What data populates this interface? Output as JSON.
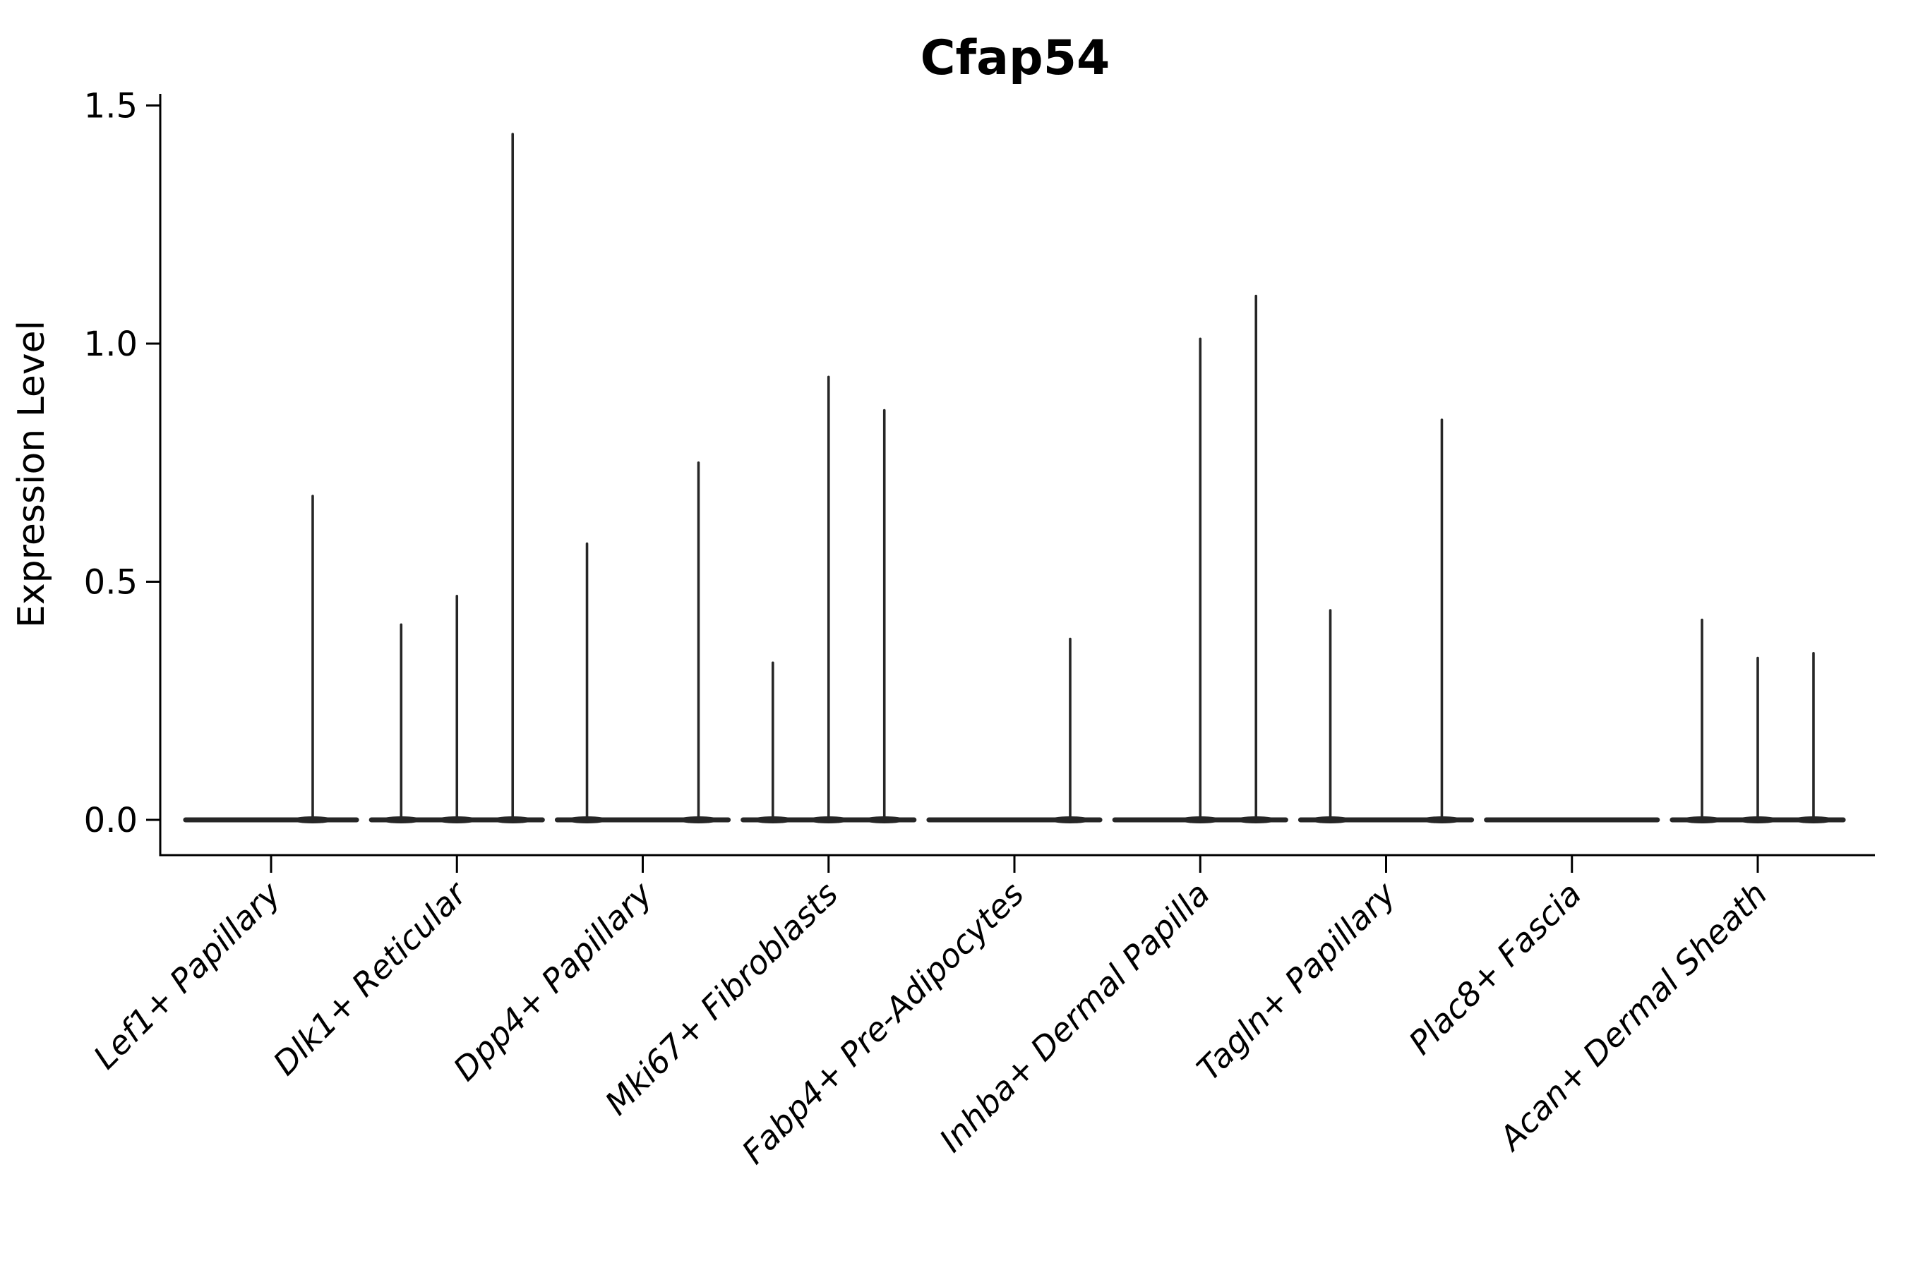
{
  "title": "Cfap54",
  "y_axis": {
    "label": "Expression Level",
    "tick_labels": [
      "0.0",
      "0.5",
      "1.0",
      "1.5"
    ],
    "tick_values": [
      0.0,
      0.5,
      1.0,
      1.5
    ]
  },
  "x_axis": {
    "categories": [
      "Lef1+ Papillary",
      "Dlk1+ Reticular",
      "Dpp4+ Papillary",
      "Mki67+ Fibroblasts",
      "Fabp4+ Pre-Adipocytes",
      "Inhba+ Dermal Papilla",
      "Tagln+ Papillary",
      "Plac8+ Fascia",
      "Acan+ Dermal Sheath"
    ]
  },
  "chart_data": {
    "type": "violin",
    "title": "Cfap54",
    "xlabel": "",
    "ylabel": "Expression Level",
    "ylim": [
      -0.07,
      1.52
    ],
    "grid": false,
    "legend": "none",
    "note": "Spike-style violins: wide flat density at 0 per category plus thin spikes; offset is fraction of category spacing from category center, value is expression level at spike top",
    "violin_half_width_frac": 0.46,
    "categories": [
      "Lef1+ Papillary",
      "Dlk1+ Reticular",
      "Dpp4+ Papillary",
      "Mki67+ Fibroblasts",
      "Fabp4+ Pre-Adipocytes",
      "Inhba+ Dermal Papilla",
      "Tagln+ Papillary",
      "Plac8+ Fascia",
      "Acan+ Dermal Sheath"
    ],
    "series": [
      {
        "name": "Lef1+ Papillary",
        "baseline_value": 0.0,
        "spikes": [
          {
            "offset": 0.224,
            "value": 0.68
          }
        ]
      },
      {
        "name": "Dlk1+ Reticular",
        "baseline_value": 0.0,
        "spikes": [
          {
            "offset": -0.3,
            "value": 0.41
          },
          {
            "offset": 0.0,
            "value": 0.47
          },
          {
            "offset": 0.3,
            "value": 1.44
          }
        ]
      },
      {
        "name": "Dpp4+ Papillary",
        "baseline_value": 0.0,
        "spikes": [
          {
            "offset": -0.3,
            "value": 0.58
          },
          {
            "offset": 0.3,
            "value": 0.75
          }
        ]
      },
      {
        "name": "Mki67+ Fibroblasts",
        "baseline_value": 0.0,
        "spikes": [
          {
            "offset": -0.3,
            "value": 0.33
          },
          {
            "offset": 0.0,
            "value": 0.93
          },
          {
            "offset": 0.3,
            "value": 0.86
          }
        ]
      },
      {
        "name": "Fabp4+ Pre-Adipocytes",
        "baseline_value": 0.0,
        "spikes": [
          {
            "offset": 0.3,
            "value": 0.38
          }
        ]
      },
      {
        "name": "Inhba+ Dermal Papilla",
        "baseline_value": 0.0,
        "spikes": [
          {
            "offset": 0.0,
            "value": 1.01
          },
          {
            "offset": 0.3,
            "value": 1.1
          }
        ]
      },
      {
        "name": "Tagln+ Papillary",
        "baseline_value": 0.0,
        "spikes": [
          {
            "offset": -0.3,
            "value": 0.44
          },
          {
            "offset": 0.3,
            "value": 0.84
          }
        ]
      },
      {
        "name": "Plac8+ Fascia",
        "baseline_value": 0.0,
        "spikes": []
      },
      {
        "name": "Acan+ Dermal Sheath",
        "baseline_value": 0.0,
        "spikes": [
          {
            "offset": -0.3,
            "value": 0.42
          },
          {
            "offset": 0.0,
            "value": 0.34
          },
          {
            "offset": 0.3,
            "value": 0.35
          }
        ]
      }
    ]
  },
  "style": {
    "background": "#ffffff",
    "axis_ink": "#000000",
    "violin_ink": "#262626"
  }
}
